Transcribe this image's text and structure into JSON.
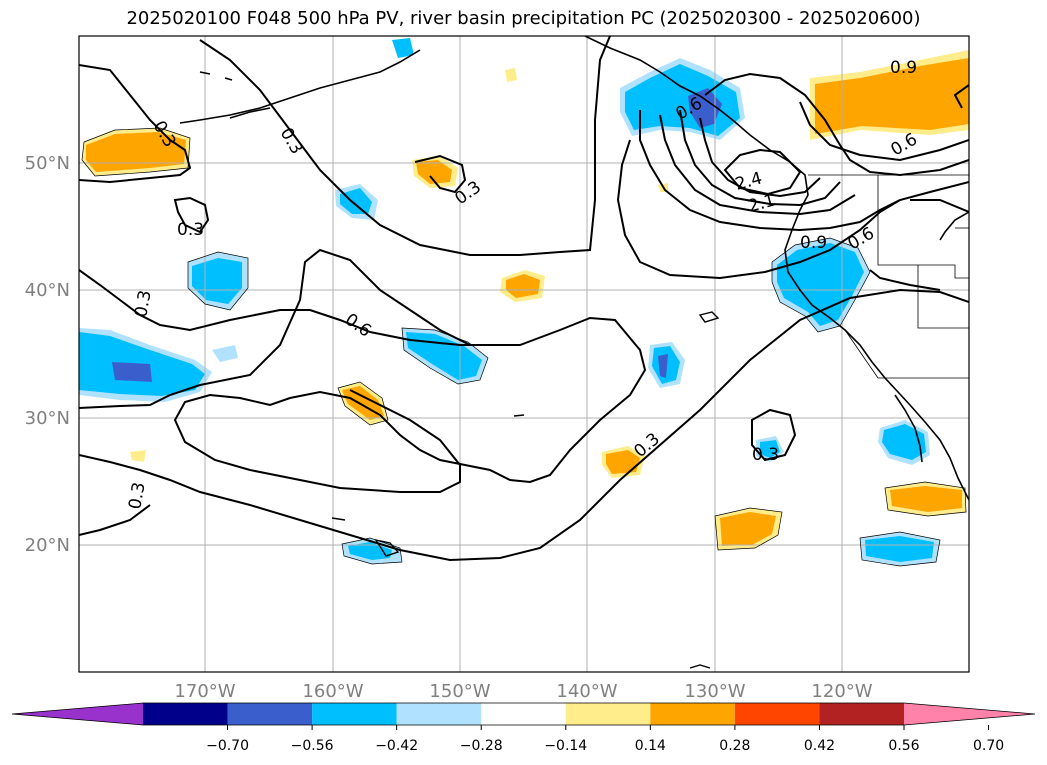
{
  "title": "2025020100 F048 500 hPa PV, river basin precipitation PC (2025020300 - 2025020600)",
  "map": {
    "lat_labels": [
      "50°N",
      "40°N",
      "30°N",
      "20°N"
    ],
    "lon_labels": [
      "170°W",
      "160°W",
      "150°W",
      "140°W",
      "130°W",
      "120°W"
    ],
    "grid_color": "#b0b0b0",
    "contour_labels": [
      "0.3",
      "0.3",
      "0.3",
      "0.3",
      "0.3",
      "0.3",
      "0.6",
      "0.6",
      "0.9",
      "0.9",
      "0.6",
      "2.4",
      "2.1",
      "0.3",
      "0.3",
      "0.6"
    ]
  },
  "colorbar": {
    "tick_labels": [
      "−0.70",
      "−0.56",
      "−0.42",
      "−0.28",
      "−0.14",
      "0.14",
      "0.28",
      "0.42",
      "0.56",
      "0.70"
    ],
    "colors": [
      "#9932cc",
      "#00008b",
      "#3a5fcd",
      "#00bfff",
      "#b0e2ff",
      "#ffffff",
      "#ffec8b",
      "#ffa500",
      "#ff4500",
      "#b22222",
      "#ff82ab"
    ]
  }
}
